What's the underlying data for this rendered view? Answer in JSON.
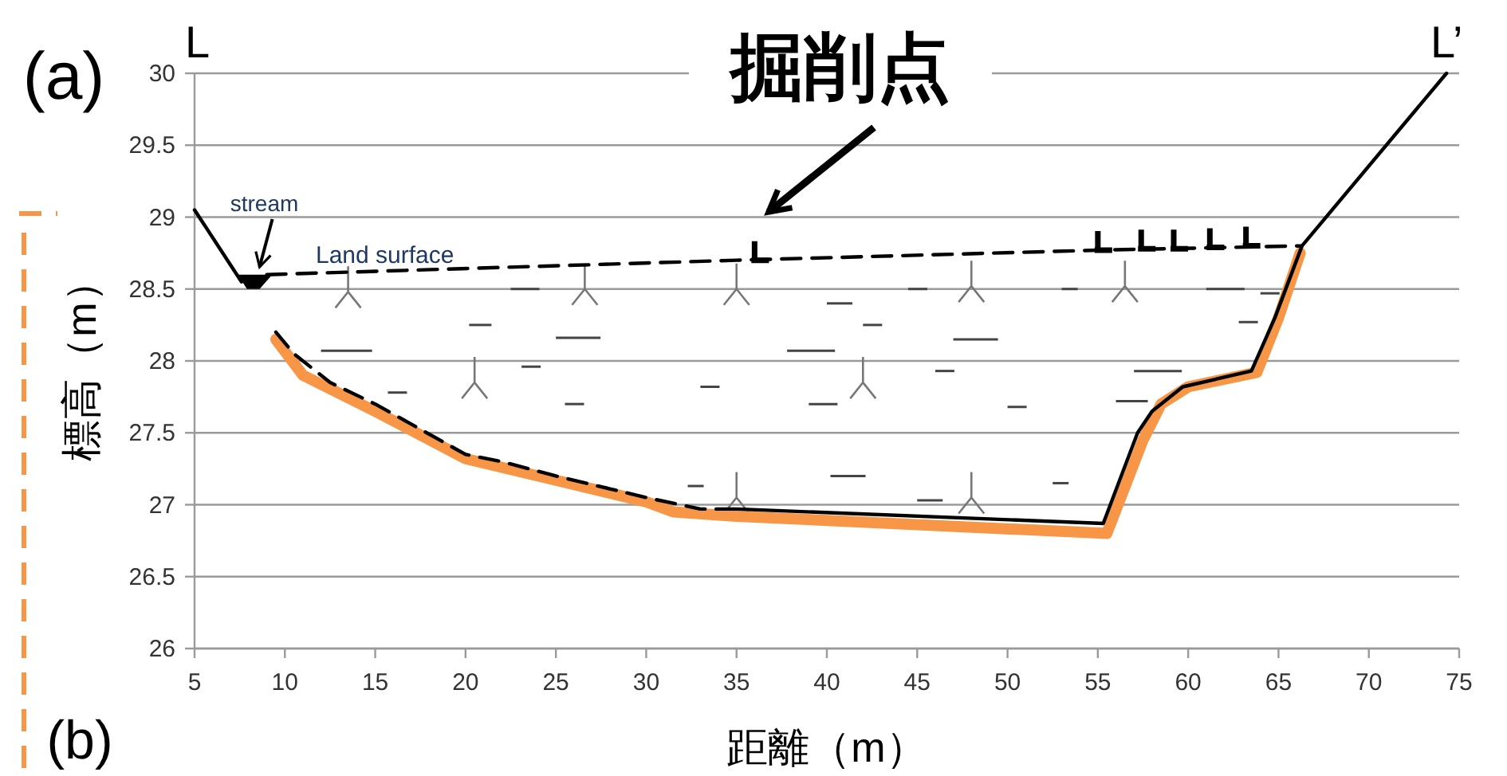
{
  "chart_data": {
    "type": "line",
    "xlabel": "距離（m）",
    "ylabel": "標高（m）",
    "xlim": [
      5,
      75
    ],
    "ylim": [
      26,
      30
    ],
    "xticks": [
      5,
      10,
      15,
      20,
      25,
      30,
      35,
      40,
      45,
      50,
      55,
      60,
      65,
      70,
      75
    ],
    "yticks": [
      26,
      26.5,
      27,
      27.5,
      28,
      28.5,
      29,
      29.5,
      30
    ],
    "grid": "y",
    "marker": "none",
    "series": [
      {
        "color": "#f79646",
        "line_style": "solid",
        "x": [
          9.5,
          11,
          15,
          20,
          25,
          30,
          31.5,
          35,
          55.5,
          57.5,
          58.5,
          60,
          63.8,
          65,
          66.2
        ],
        "values": [
          28.15,
          27.9,
          27.65,
          27.32,
          27.17,
          27.02,
          26.95,
          26.92,
          26.8,
          27.45,
          27.7,
          27.82,
          27.92,
          28.3,
          28.75
        ]
      },
      {
        "color": "#000000",
        "line_style": "solid",
        "x": [
          5,
          7.6
        ],
        "values": [
          29.05,
          28.55
        ]
      },
      {
        "color": "#000000",
        "line_style": "dashed",
        "x": [
          9,
          35,
          55,
          66.3
        ],
        "values": [
          28.6,
          28.7,
          28.77,
          28.8
        ]
      },
      {
        "color": "#000000",
        "line_style": "dashed",
        "x": [
          9.5,
          10.5,
          12.5,
          15,
          20,
          22,
          25,
          30,
          33,
          35
        ],
        "values": [
          28.2,
          28.05,
          27.85,
          27.7,
          27.35,
          27.3,
          27.2,
          27.05,
          26.97,
          26.97
        ]
      },
      {
        "color": "#000000",
        "line_style": "solid",
        "x": [
          35,
          55.3,
          57.2,
          58,
          59.7,
          63.5,
          64.8,
          66.3,
          74.3
        ],
        "values": [
          26.97,
          26.87,
          27.5,
          27.65,
          27.82,
          27.93,
          28.3,
          28.8,
          30
        ]
      }
    ],
    "annotations": [
      "掘削点",
      {
        "text": "stream",
        "x": 8.6,
        "y": 28.62
      },
      "Land surface",
      "L",
      "L’",
      "(a)",
      "(b)"
    ]
  }
}
